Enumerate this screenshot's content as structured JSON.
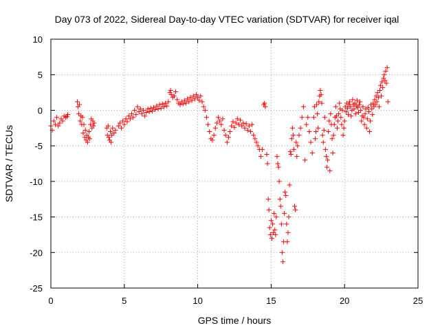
{
  "chart_data": {
    "type": "scatter",
    "title": "Day 073 of 2022, Sidereal Day-to-day VTEC variation (SDTVAR) for receiver iqal",
    "xlabel": "GPS time / hours",
    "ylabel": "SDTVAR / TECUs",
    "xlim": [
      0,
      25
    ],
    "ylim": [
      -25,
      10
    ],
    "xticks": [
      0,
      5,
      10,
      15,
      20,
      25
    ],
    "yticks": [
      -25,
      -20,
      -15,
      -10,
      -5,
      0,
      5,
      10
    ],
    "grid": true,
    "marker": "+",
    "color": "#ff0000",
    "series": [
      {
        "name": "SDTVAR",
        "points": [
          [
            0.0,
            -2.2
          ],
          [
            0.1,
            -2.8
          ],
          [
            0.2,
            -1.5
          ],
          [
            0.3,
            -2.0
          ],
          [
            0.4,
            -1.0
          ],
          [
            0.5,
            -2.2
          ],
          [
            0.6,
            -1.8
          ],
          [
            0.7,
            -1.2
          ],
          [
            0.8,
            -1.5
          ],
          [
            0.9,
            -0.8
          ],
          [
            1.0,
            -1.0
          ],
          [
            1.1,
            -0.9
          ],
          [
            1.15,
            -0.6
          ],
          [
            1.8,
            1.2
          ],
          [
            1.85,
            0.5
          ],
          [
            1.9,
            -0.5
          ],
          [
            1.95,
            0.8
          ],
          [
            2.0,
            -1.5
          ],
          [
            2.05,
            -0.8
          ],
          [
            2.1,
            -2.0
          ],
          [
            2.15,
            -1.0
          ],
          [
            2.2,
            -3.2
          ],
          [
            2.25,
            -2.0
          ],
          [
            2.3,
            -3.8
          ],
          [
            2.35,
            -2.8
          ],
          [
            2.4,
            -4.2
          ],
          [
            2.45,
            -3.5
          ],
          [
            2.5,
            -4.5
          ],
          [
            2.55,
            -3.8
          ],
          [
            2.6,
            -3.0
          ],
          [
            2.65,
            -4.0
          ],
          [
            2.7,
            -2.0
          ],
          [
            2.75,
            -1.2
          ],
          [
            2.8,
            -2.5
          ],
          [
            2.85,
            -1.5
          ],
          [
            2.9,
            -2.2
          ],
          [
            2.95,
            -1.8
          ],
          [
            3.8,
            -2.5
          ],
          [
            3.85,
            -3.5
          ],
          [
            3.9,
            -2.2
          ],
          [
            3.95,
            -3.8
          ],
          [
            4.0,
            -4.2
          ],
          [
            4.05,
            -3.0
          ],
          [
            4.1,
            -4.5
          ],
          [
            4.15,
            -3.5
          ],
          [
            4.2,
            -2.5
          ],
          [
            4.3,
            -3.2
          ],
          [
            4.4,
            -2.8
          ],
          [
            4.6,
            -2.2
          ],
          [
            4.7,
            -1.8
          ],
          [
            4.8,
            -2.5
          ],
          [
            4.9,
            -1.5
          ],
          [
            5.0,
            -2.0
          ],
          [
            5.1,
            -1.2
          ],
          [
            5.2,
            -1.6
          ],
          [
            5.3,
            -0.8
          ],
          [
            5.4,
            -1.2
          ],
          [
            5.5,
            -0.5
          ],
          [
            5.6,
            -1.0
          ],
          [
            5.7,
            0.0
          ],
          [
            5.8,
            -0.6
          ],
          [
            5.9,
            0.5
          ],
          [
            6.0,
            -0.2
          ],
          [
            6.1,
            0.2
          ],
          [
            6.2,
            -0.5
          ],
          [
            6.3,
            0.0
          ],
          [
            6.4,
            -0.8
          ],
          [
            6.5,
            -0.3
          ],
          [
            6.6,
            0.2
          ],
          [
            6.7,
            -0.2
          ],
          [
            6.8,
            0.3
          ],
          [
            6.9,
            -0.1
          ],
          [
            7.0,
            0.4
          ],
          [
            7.1,
            0.1
          ],
          [
            7.2,
            0.6
          ],
          [
            7.3,
            0.2
          ],
          [
            7.4,
            0.8
          ],
          [
            7.5,
            0.3
          ],
          [
            7.6,
            0.9
          ],
          [
            7.7,
            0.5
          ],
          [
            7.8,
            1.0
          ],
          [
            7.9,
            0.6
          ],
          [
            8.0,
            1.2
          ],
          [
            8.1,
            2.5
          ],
          [
            8.15,
            2.8
          ],
          [
            8.2,
            2.2
          ],
          [
            8.3,
            1.8
          ],
          [
            8.4,
            2.0
          ],
          [
            8.5,
            2.6
          ],
          [
            8.6,
            1.5
          ],
          [
            8.7,
            1.0
          ],
          [
            8.8,
            0.8
          ],
          [
            8.9,
            1.2
          ],
          [
            9.0,
            0.9
          ],
          [
            9.1,
            1.4
          ],
          [
            9.2,
            1.0
          ],
          [
            9.3,
            1.6
          ],
          [
            9.4,
            1.2
          ],
          [
            9.5,
            1.8
          ],
          [
            9.6,
            1.4
          ],
          [
            9.7,
            2.0
          ],
          [
            9.8,
            1.6
          ],
          [
            9.9,
            2.2
          ],
          [
            10.0,
            1.8
          ],
          [
            10.1,
            1.4
          ],
          [
            10.2,
            2.0
          ],
          [
            10.3,
            1.2
          ],
          [
            10.4,
            0.5
          ],
          [
            10.5,
            0.0
          ],
          [
            10.6,
            -1.0
          ],
          [
            10.7,
            -2.0
          ],
          [
            10.8,
            -3.0
          ],
          [
            10.9,
            -4.0
          ],
          [
            11.0,
            -4.2
          ],
          [
            11.1,
            -3.5
          ],
          [
            11.2,
            -2.5
          ],
          [
            11.3,
            -1.8
          ],
          [
            11.4,
            -1.0
          ],
          [
            11.5,
            -1.5
          ],
          [
            11.6,
            -2.0
          ],
          [
            11.7,
            -1.2
          ],
          [
            11.8,
            -2.8
          ],
          [
            11.9,
            -3.5
          ],
          [
            12.0,
            -4.5
          ],
          [
            12.1,
            -3.8
          ],
          [
            12.2,
            -3.0
          ],
          [
            12.3,
            -2.2
          ],
          [
            12.4,
            -1.6
          ],
          [
            12.5,
            -2.4
          ],
          [
            12.6,
            -1.8
          ],
          [
            12.7,
            -1.2
          ],
          [
            12.8,
            -2.0
          ],
          [
            12.9,
            -1.4
          ],
          [
            13.0,
            -2.2
          ],
          [
            13.1,
            -1.8
          ],
          [
            13.2,
            -2.5
          ],
          [
            13.3,
            -1.9
          ],
          [
            13.4,
            -2.8
          ],
          [
            13.5,
            -2.2
          ],
          [
            13.6,
            -3.0
          ],
          [
            13.7,
            -2.0
          ],
          [
            13.8,
            -3.5
          ],
          [
            13.9,
            -4.0
          ],
          [
            14.0,
            -4.5
          ],
          [
            14.1,
            -5.0
          ],
          [
            14.2,
            -5.5
          ],
          [
            14.3,
            -6.5
          ],
          [
            14.4,
            -5.5
          ],
          [
            14.5,
            0.8
          ],
          [
            14.55,
            1.0
          ],
          [
            14.6,
            0.5
          ],
          [
            14.7,
            -6.2
          ],
          [
            14.75,
            -7.5
          ],
          [
            14.8,
            -12.5
          ],
          [
            14.85,
            -14.0
          ],
          [
            14.9,
            -16.5
          ],
          [
            14.95,
            -17.5
          ],
          [
            15.0,
            -15.5
          ],
          [
            15.05,
            -18.0
          ],
          [
            15.1,
            -16.0
          ],
          [
            15.15,
            -17.2
          ],
          [
            15.2,
            -14.5
          ],
          [
            15.25,
            -16.8
          ],
          [
            15.3,
            -17.5
          ],
          [
            15.35,
            -15.0
          ],
          [
            15.4,
            -6.5
          ],
          [
            15.45,
            -7.5
          ],
          [
            15.5,
            -8.0
          ],
          [
            15.55,
            -10.0
          ],
          [
            15.6,
            -12.5
          ],
          [
            15.65,
            -13.5
          ],
          [
            15.7,
            -16.0
          ],
          [
            15.75,
            -20.0
          ],
          [
            15.8,
            -21.3
          ],
          [
            15.85,
            -18.5
          ],
          [
            15.9,
            -14.5
          ],
          [
            15.95,
            -11.5
          ],
          [
            16.0,
            -12.0
          ],
          [
            16.05,
            -16.0
          ],
          [
            16.1,
            -18.5
          ],
          [
            16.15,
            -17.2
          ],
          [
            16.2,
            -15.0
          ],
          [
            16.25,
            -10.5
          ],
          [
            16.3,
            -5.8
          ],
          [
            16.35,
            -6.2
          ],
          [
            16.4,
            -4.0
          ],
          [
            16.45,
            -2.5
          ],
          [
            16.5,
            -3.5
          ],
          [
            16.55,
            -5.5
          ],
          [
            16.6,
            -13.5
          ],
          [
            16.65,
            -14.0
          ],
          [
            16.7,
            -4.5
          ],
          [
            16.75,
            -6.5
          ],
          [
            16.8,
            -5.0
          ],
          [
            16.9,
            -3.5
          ],
          [
            17.0,
            -2.5
          ],
          [
            17.1,
            -1.0
          ],
          [
            17.2,
            0.5
          ],
          [
            17.3,
            -7.0
          ],
          [
            17.4,
            -2.0
          ],
          [
            17.5,
            -1.0
          ],
          [
            17.6,
            -3.0
          ],
          [
            17.7,
            -4.5
          ],
          [
            17.8,
            -6.0
          ],
          [
            17.9,
            -1.0
          ],
          [
            17.95,
            0.5
          ],
          [
            18.0,
            -4.0
          ],
          [
            18.05,
            -3.0
          ],
          [
            18.1,
            0.8
          ],
          [
            18.15,
            -0.5
          ],
          [
            18.2,
            -2.5
          ],
          [
            18.25,
            1.2
          ],
          [
            18.3,
            2.0
          ],
          [
            18.35,
            2.8
          ],
          [
            18.4,
            2.2
          ],
          [
            18.45,
            1.0
          ],
          [
            18.5,
            -3.5
          ],
          [
            18.55,
            -4.5
          ],
          [
            18.6,
            -2.8
          ],
          [
            18.65,
            -1.0
          ],
          [
            18.7,
            -5.5
          ],
          [
            18.75,
            -6.5
          ],
          [
            18.8,
            -8.0
          ],
          [
            18.85,
            -7.0
          ],
          [
            18.9,
            -3.0
          ],
          [
            18.95,
            -1.5
          ],
          [
            19.0,
            -8.5
          ],
          [
            19.05,
            -0.5
          ],
          [
            19.1,
            -2.0
          ],
          [
            19.15,
            -4.0
          ],
          [
            19.2,
            -6.0
          ],
          [
            19.25,
            -3.5
          ],
          [
            19.3,
            -2.0
          ],
          [
            19.35,
            -1.0
          ],
          [
            19.4,
            0.5
          ],
          [
            19.45,
            -0.8
          ],
          [
            19.5,
            -2.5
          ],
          [
            19.55,
            -1.5
          ],
          [
            19.6,
            -0.5
          ],
          [
            19.65,
            1.0
          ],
          [
            19.7,
            0.2
          ],
          [
            19.75,
            -1.0
          ],
          [
            19.8,
            -2.0
          ],
          [
            19.85,
            0.0
          ],
          [
            19.9,
            -3.5
          ],
          [
            19.95,
            -2.5
          ],
          [
            20.0,
            -1.5
          ],
          [
            20.05,
            0.5
          ],
          [
            20.1,
            -0.2
          ],
          [
            20.15,
            1.0
          ],
          [
            20.2,
            0.3
          ],
          [
            20.25,
            -0.6
          ],
          [
            20.3,
            0.8
          ],
          [
            20.35,
            1.2
          ],
          [
            20.4,
            0.5
          ],
          [
            20.45,
            -0.8
          ],
          [
            20.5,
            0.0
          ],
          [
            20.55,
            1.5
          ],
          [
            20.6,
            0.8
          ],
          [
            20.65,
            0.2
          ],
          [
            20.7,
            1.0
          ],
          [
            20.75,
            -0.5
          ],
          [
            20.8,
            0.6
          ],
          [
            20.85,
            1.4
          ],
          [
            20.9,
            0.4
          ],
          [
            20.95,
            -0.3
          ],
          [
            21.0,
            0.8
          ],
          [
            21.05,
            1.2
          ],
          [
            21.1,
            0.0
          ],
          [
            21.15,
            -1.5
          ],
          [
            21.2,
            -0.8
          ],
          [
            21.25,
            0.5
          ],
          [
            21.3,
            -1.0
          ],
          [
            21.35,
            -2.0
          ],
          [
            21.4,
            -0.5
          ],
          [
            21.45,
            0.2
          ],
          [
            21.5,
            -2.5
          ],
          [
            21.55,
            -1.2
          ],
          [
            21.6,
            0.4
          ],
          [
            21.65,
            -0.2
          ],
          [
            21.7,
            -3.0
          ],
          [
            21.75,
            -1.5
          ],
          [
            21.8,
            0.8
          ],
          [
            21.85,
            0.2
          ],
          [
            21.9,
            -0.6
          ],
          [
            21.95,
            1.0
          ],
          [
            22.0,
            0.5
          ],
          [
            22.05,
            1.5
          ],
          [
            22.1,
            0.8
          ],
          [
            22.15,
            2.0
          ],
          [
            22.2,
            1.2
          ],
          [
            22.25,
            2.5
          ],
          [
            22.3,
            1.8
          ],
          [
            22.35,
            0.5
          ],
          [
            22.4,
            2.8
          ],
          [
            22.45,
            3.5
          ],
          [
            22.5,
            2.0
          ],
          [
            22.55,
            4.0
          ],
          [
            22.6,
            3.2
          ],
          [
            22.65,
            4.5
          ],
          [
            22.7,
            5.0
          ],
          [
            22.75,
            4.2
          ],
          [
            22.8,
            5.5
          ],
          [
            22.85,
            3.8
          ],
          [
            22.9,
            6.0
          ],
          [
            22.95,
            1.2
          ]
        ]
      }
    ]
  }
}
